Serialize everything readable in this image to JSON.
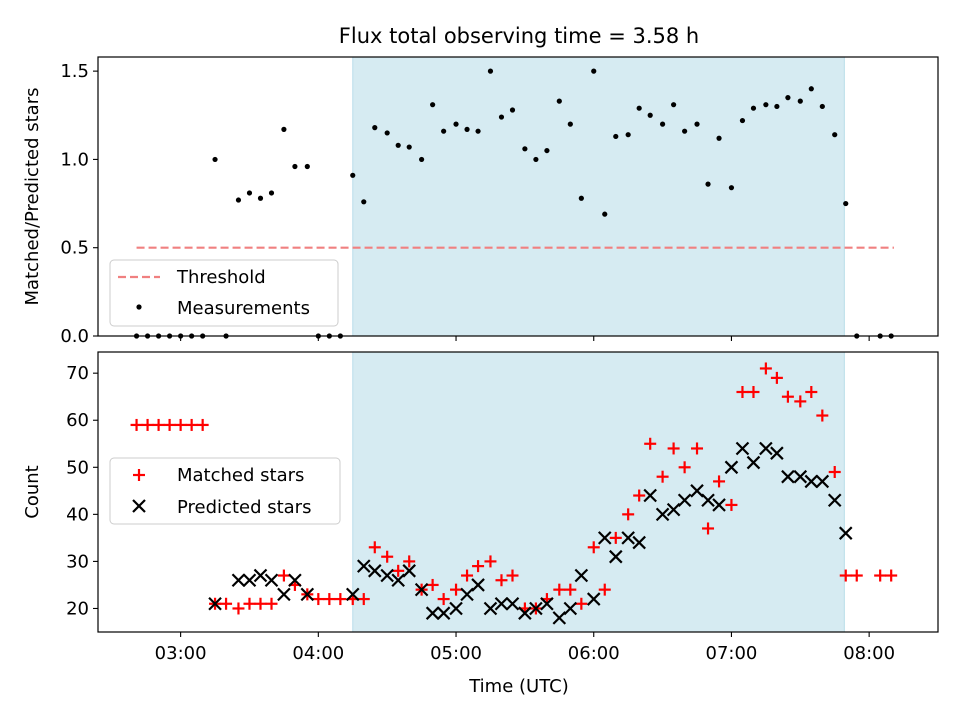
{
  "figure": {
    "title": "Flux total observing time = 3.58 h"
  },
  "chart_data": [
    {
      "type": "scatter",
      "panel": "top",
      "ylabel": "Matched/Predicted stars",
      "xlim": [
        2.4,
        8.5
      ],
      "ylim": [
        0,
        1.58
      ],
      "yticks": [
        0.0,
        0.5,
        1.0,
        1.5
      ],
      "ytick_labels": [
        "0.0",
        "0.5",
        "1.0",
        "1.5"
      ],
      "shaded_x": [
        4.25,
        7.82
      ],
      "threshold": {
        "name": "Threshold",
        "y": 0.5,
        "x": [
          2.68,
          8.18
        ],
        "color": "#f08080"
      },
      "series": [
        {
          "name": "Measurements",
          "color": "#000000",
          "points": [
            [
              2.68,
              0
            ],
            [
              2.76,
              0
            ],
            [
              2.84,
              0
            ],
            [
              2.92,
              0
            ],
            [
              3.0,
              0
            ],
            [
              3.08,
              0
            ],
            [
              3.16,
              0
            ],
            [
              3.25,
              1.0
            ],
            [
              3.33,
              0
            ],
            [
              3.42,
              0.77
            ],
            [
              3.5,
              0.81
            ],
            [
              3.58,
              0.78
            ],
            [
              3.66,
              0.81
            ],
            [
              3.75,
              1.17
            ],
            [
              3.83,
              0.96
            ],
            [
              3.92,
              0.96
            ],
            [
              4.0,
              0
            ],
            [
              4.08,
              0
            ],
            [
              4.16,
              0
            ],
            [
              4.25,
              0.91
            ],
            [
              4.33,
              0.76
            ],
            [
              4.41,
              1.18
            ],
            [
              4.5,
              1.15
            ],
            [
              4.58,
              1.08
            ],
            [
              4.66,
              1.07
            ],
            [
              4.75,
              1.0
            ],
            [
              4.83,
              1.31
            ],
            [
              4.91,
              1.16
            ],
            [
              5.0,
              1.2
            ],
            [
              5.08,
              1.17
            ],
            [
              5.16,
              1.16
            ],
            [
              5.25,
              1.5
            ],
            [
              5.33,
              1.24
            ],
            [
              5.41,
              1.28
            ],
            [
              5.5,
              1.06
            ],
            [
              5.58,
              1.0
            ],
            [
              5.66,
              1.05
            ],
            [
              5.75,
              1.33
            ],
            [
              5.83,
              1.2
            ],
            [
              5.91,
              0.78
            ],
            [
              6.0,
              1.5
            ],
            [
              6.08,
              0.69
            ],
            [
              6.16,
              1.13
            ],
            [
              6.25,
              1.14
            ],
            [
              6.33,
              1.29
            ],
            [
              6.41,
              1.25
            ],
            [
              6.5,
              1.2
            ],
            [
              6.58,
              1.31
            ],
            [
              6.66,
              1.16
            ],
            [
              6.75,
              1.2
            ],
            [
              6.83,
              0.86
            ],
            [
              6.91,
              1.12
            ],
            [
              7.0,
              0.84
            ],
            [
              7.08,
              1.22
            ],
            [
              7.16,
              1.29
            ],
            [
              7.25,
              1.31
            ],
            [
              7.33,
              1.3
            ],
            [
              7.41,
              1.35
            ],
            [
              7.5,
              1.33
            ],
            [
              7.58,
              1.4
            ],
            [
              7.66,
              1.3
            ],
            [
              7.75,
              1.14
            ],
            [
              7.83,
              0.75
            ],
            [
              7.91,
              0
            ],
            [
              8.08,
              0
            ],
            [
              8.16,
              0
            ]
          ]
        }
      ]
    },
    {
      "type": "scatter",
      "panel": "bottom",
      "xlabel": "Time (UTC)",
      "ylabel": "Count",
      "xlim": [
        2.4,
        8.5
      ],
      "ylim": [
        15,
        74.5
      ],
      "xticks": [
        3,
        4,
        5,
        6,
        7,
        8
      ],
      "xtick_labels": [
        "03:00",
        "04:00",
        "05:00",
        "06:00",
        "07:00",
        "08:00"
      ],
      "yticks": [
        20,
        30,
        40,
        50,
        60,
        70
      ],
      "ytick_labels": [
        "20",
        "30",
        "40",
        "50",
        "60",
        "70"
      ],
      "shaded_x": [
        4.25,
        7.82
      ],
      "series": [
        {
          "name": "Matched stars",
          "marker": "plus",
          "color": "#ff0000",
          "points": [
            [
              2.68,
              59
            ],
            [
              2.76,
              59
            ],
            [
              2.84,
              59
            ],
            [
              2.92,
              59
            ],
            [
              3.0,
              59
            ],
            [
              3.08,
              59
            ],
            [
              3.16,
              59
            ],
            [
              3.25,
              21
            ],
            [
              3.33,
              21
            ],
            [
              3.42,
              20
            ],
            [
              3.5,
              21
            ],
            [
              3.58,
              21
            ],
            [
              3.66,
              21
            ],
            [
              3.75,
              27
            ],
            [
              3.83,
              25
            ],
            [
              3.92,
              23
            ],
            [
              4.0,
              22
            ],
            [
              4.08,
              22
            ],
            [
              4.16,
              22
            ],
            [
              4.25,
              22
            ],
            [
              4.33,
              22
            ],
            [
              4.41,
              33
            ],
            [
              4.5,
              31
            ],
            [
              4.58,
              28
            ],
            [
              4.66,
              30
            ],
            [
              4.75,
              24
            ],
            [
              4.83,
              25
            ],
            [
              4.91,
              22
            ],
            [
              5.0,
              24
            ],
            [
              5.08,
              27
            ],
            [
              5.16,
              29
            ],
            [
              5.25,
              30
            ],
            [
              5.33,
              26
            ],
            [
              5.41,
              27
            ],
            [
              5.5,
              20
            ],
            [
              5.58,
              20
            ],
            [
              5.66,
              22
            ],
            [
              5.75,
              24
            ],
            [
              5.83,
              24
            ],
            [
              5.91,
              21
            ],
            [
              6.0,
              33
            ],
            [
              6.08,
              24
            ],
            [
              6.16,
              35
            ],
            [
              6.25,
              40
            ],
            [
              6.33,
              44
            ],
            [
              6.41,
              55
            ],
            [
              6.5,
              48
            ],
            [
              6.58,
              54
            ],
            [
              6.66,
              50
            ],
            [
              6.75,
              54
            ],
            [
              6.83,
              37
            ],
            [
              6.91,
              47
            ],
            [
              7.0,
              42
            ],
            [
              7.08,
              66
            ],
            [
              7.16,
              66
            ],
            [
              7.25,
              71
            ],
            [
              7.33,
              69
            ],
            [
              7.41,
              65
            ],
            [
              7.5,
              64
            ],
            [
              7.58,
              66
            ],
            [
              7.66,
              61
            ],
            [
              7.75,
              49
            ],
            [
              7.83,
              27
            ],
            [
              7.91,
              27
            ],
            [
              8.08,
              27
            ],
            [
              8.16,
              27
            ]
          ]
        },
        {
          "name": "Predicted stars",
          "marker": "x",
          "color": "#000000",
          "points": [
            [
              3.25,
              21
            ],
            [
              3.42,
              26
            ],
            [
              3.5,
              26
            ],
            [
              3.58,
              27
            ],
            [
              3.66,
              26
            ],
            [
              3.75,
              23
            ],
            [
              3.83,
              26
            ],
            [
              3.92,
              23
            ],
            [
              4.25,
              23
            ],
            [
              4.33,
              29
            ],
            [
              4.41,
              28
            ],
            [
              4.5,
              27
            ],
            [
              4.58,
              26
            ],
            [
              4.66,
              28
            ],
            [
              4.75,
              24
            ],
            [
              4.83,
              19
            ],
            [
              4.91,
              19
            ],
            [
              5.0,
              20
            ],
            [
              5.08,
              23
            ],
            [
              5.16,
              25
            ],
            [
              5.25,
              20
            ],
            [
              5.33,
              21
            ],
            [
              5.41,
              21
            ],
            [
              5.5,
              19
            ],
            [
              5.58,
              20
            ],
            [
              5.66,
              21
            ],
            [
              5.75,
              18
            ],
            [
              5.83,
              20
            ],
            [
              5.91,
              27
            ],
            [
              6.0,
              22
            ],
            [
              6.08,
              35
            ],
            [
              6.16,
              31
            ],
            [
              6.25,
              35
            ],
            [
              6.33,
              34
            ],
            [
              6.41,
              44
            ],
            [
              6.5,
              40
            ],
            [
              6.58,
              41
            ],
            [
              6.66,
              43
            ],
            [
              6.75,
              45
            ],
            [
              6.83,
              43
            ],
            [
              6.91,
              42
            ],
            [
              7.0,
              50
            ],
            [
              7.08,
              54
            ],
            [
              7.16,
              51
            ],
            [
              7.25,
              54
            ],
            [
              7.33,
              53
            ],
            [
              7.41,
              48
            ],
            [
              7.5,
              48
            ],
            [
              7.58,
              47
            ],
            [
              7.66,
              47
            ],
            [
              7.75,
              43
            ],
            [
              7.83,
              36
            ]
          ]
        }
      ]
    }
  ]
}
